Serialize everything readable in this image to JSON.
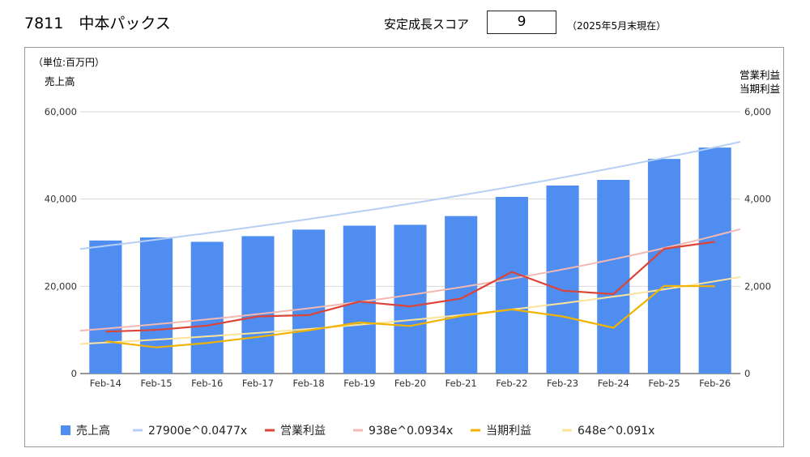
{
  "header": {
    "title": "7811　中本パックス",
    "score_label": "安定成長スコア",
    "score_value": "9",
    "as_of": "（2025年5月末現在）"
  },
  "chart_data": {
    "type": "bar",
    "unit_note": "（単位:百万円）",
    "left_axis_title": "売上高",
    "right_axis_title_1": "営業利益",
    "right_axis_title_2": "当期利益",
    "categories": [
      "Feb-14",
      "Feb-15",
      "Feb-16",
      "Feb-17",
      "Feb-18",
      "Feb-19",
      "Feb-20",
      "Feb-21",
      "Feb-22",
      "Feb-23",
      "Feb-24",
      "Feb-25",
      "Feb-26"
    ],
    "left_ylim": [
      0,
      60000
    ],
    "right_ylim": [
      0,
      6000
    ],
    "left_ticks": [
      "0",
      "20,000",
      "40,000",
      "60,000"
    ],
    "right_ticks": [
      "0",
      "2,000",
      "4,000",
      "6,000"
    ],
    "grid": true,
    "legend_position": "bottom",
    "series": [
      {
        "name": "売上高",
        "type": "bar",
        "axis": "left",
        "color": "#4f8ef0",
        "values": [
          30500,
          31200,
          30200,
          31500,
          33000,
          33900,
          34100,
          36100,
          40500,
          43100,
          44400,
          49200,
          51800
        ]
      },
      {
        "name": "営業利益",
        "type": "line",
        "axis": "right",
        "color": "#db4437",
        "values": [
          960,
          1000,
          1100,
          1310,
          1340,
          1650,
          1540,
          1720,
          2330,
          1900,
          1820,
          2860,
          3020
        ]
      },
      {
        "name": "当期利益",
        "type": "line",
        "axis": "right",
        "color": "#f2b300",
        "values": [
          740,
          600,
          700,
          840,
          990,
          1170,
          1090,
          1320,
          1470,
          1310,
          1050,
          2010,
          2000
        ]
      }
    ],
    "trendlines": [
      {
        "name": "27900e^0.0477x",
        "axis": "left",
        "color": "#b7cff5",
        "a": 27900,
        "b": 0.0477
      },
      {
        "name": "938e^0.0934x",
        "axis": "right",
        "color": "#f2b8b1",
        "a": 938,
        "b": 0.0934
      },
      {
        "name": "648e^0.091x",
        "axis": "right",
        "color": "#fbe39a",
        "a": 648,
        "b": 0.091
      }
    ]
  }
}
